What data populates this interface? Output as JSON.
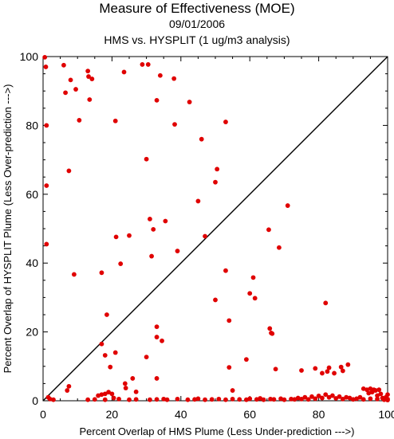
{
  "chart_data": {
    "type": "scatter",
    "title": "Measure of Effectiveness (MOE)",
    "subtitle_date": "09/01/2006",
    "subtitle_analysis": "HMS vs. HYSPLIT  (1 ug/m3 analysis)",
    "xlabel": "Percent Overlap of HMS Plume (Less Under-prediction --->)",
    "ylabel": "Percent Overlap of HYSPLIT Plume (Less Over-prediction --->)",
    "xlim": [
      0,
      100
    ],
    "ylim": [
      0,
      100
    ],
    "xticks": [
      0,
      20,
      40,
      60,
      80,
      100
    ],
    "yticks": [
      0,
      20,
      40,
      60,
      80,
      100
    ],
    "grid": false,
    "reference_line": "y = x diagonal",
    "marker_color": "#e00000",
    "series": [
      {
        "points": [
          [
            0.5,
            99.8
          ],
          [
            0.8,
            97
          ],
          [
            1,
            80
          ],
          [
            1,
            62.5
          ],
          [
            1,
            45.5
          ],
          [
            6,
            97.5
          ],
          [
            6.5,
            89.5
          ],
          [
            8,
            93.2
          ],
          [
            9.5,
            90.5
          ],
          [
            10.5,
            81.5
          ],
          [
            13,
            95.8
          ],
          [
            13.2,
            94.2
          ],
          [
            13.5,
            87.5
          ],
          [
            14.2,
            93.5
          ],
          [
            7.5,
            66.8
          ],
          [
            9,
            36.7
          ],
          [
            17,
            37.2
          ],
          [
            18.5,
            25
          ],
          [
            21,
            81.3
          ],
          [
            21.2,
            47.6
          ],
          [
            22.5,
            39.8
          ],
          [
            23.5,
            95.5
          ],
          [
            25,
            48
          ],
          [
            28.8,
            97.7
          ],
          [
            30.5,
            97.7
          ],
          [
            30,
            70.2
          ],
          [
            31,
            52.8
          ],
          [
            31.5,
            42
          ],
          [
            32,
            49.8
          ],
          [
            33,
            87.3
          ],
          [
            34,
            94.5
          ],
          [
            35.5,
            52.2
          ],
          [
            38,
            93.6
          ],
          [
            38.2,
            80.3
          ],
          [
            39,
            43.5
          ],
          [
            42.5,
            86.8
          ],
          [
            45,
            58
          ],
          [
            46,
            76
          ],
          [
            47,
            47.8
          ],
          [
            50,
            63.5
          ],
          [
            50.5,
            67.3
          ],
          [
            53,
            81
          ],
          [
            53,
            37.8
          ],
          [
            60,
            31.2
          ],
          [
            61,
            35.8
          ],
          [
            61.5,
            29.8
          ],
          [
            65.5,
            49.7
          ],
          [
            68.5,
            44.5
          ],
          [
            71,
            56.7
          ],
          [
            50,
            29.3
          ],
          [
            54,
            23.3
          ],
          [
            33,
            21.5
          ],
          [
            33,
            18.5
          ],
          [
            34.5,
            17.4
          ],
          [
            17,
            16.5
          ],
          [
            18,
            13.2
          ],
          [
            21,
            14
          ],
          [
            19.5,
            9.8
          ],
          [
            30,
            12.7
          ],
          [
            33,
            6.5
          ],
          [
            26,
            6.5
          ],
          [
            23.8,
            5
          ],
          [
            24,
            3.7
          ],
          [
            7.5,
            4.2
          ],
          [
            7,
            3
          ],
          [
            1.5,
            1
          ],
          [
            2,
            0.5
          ],
          [
            3,
            0.3
          ],
          [
            54,
            9.7
          ],
          [
            59,
            12
          ],
          [
            65.8,
            21
          ],
          [
            66.2,
            19.7
          ],
          [
            66.5,
            19.5
          ],
          [
            67.5,
            9.2
          ],
          [
            75,
            8.8
          ],
          [
            82,
            28.4
          ],
          [
            79,
            9.4
          ],
          [
            81,
            8
          ],
          [
            82.5,
            8.5
          ],
          [
            83,
            9.6
          ],
          [
            84.5,
            8
          ],
          [
            86.5,
            9.8
          ],
          [
            87,
            8.7
          ],
          [
            88.5,
            10.5
          ],
          [
            16,
            1.5
          ],
          [
            17,
            1.8
          ],
          [
            18,
            2
          ],
          [
            19,
            2.5
          ],
          [
            20,
            2
          ],
          [
            20.5,
            0.8
          ],
          [
            27,
            2.6
          ],
          [
            55,
            3
          ],
          [
            13,
            0.3
          ],
          [
            15,
            0.4
          ],
          [
            18,
            0.3
          ],
          [
            22,
            0.5
          ],
          [
            25,
            0.3
          ],
          [
            27,
            0.4
          ],
          [
            31,
            0.3
          ],
          [
            33,
            0.4
          ],
          [
            35,
            0.5
          ],
          [
            36,
            0.3
          ],
          [
            39,
            0.5
          ],
          [
            42,
            0.3
          ],
          [
            44,
            0.4
          ],
          [
            45,
            0.6
          ],
          [
            47,
            0.3
          ],
          [
            49,
            0.4
          ],
          [
            51,
            0.5
          ],
          [
            53,
            0.3
          ],
          [
            55,
            0.5
          ],
          [
            57,
            0.4
          ],
          [
            59,
            0.3
          ],
          [
            60,
            0.6
          ],
          [
            62,
            0.4
          ],
          [
            63,
            0.7
          ],
          [
            64,
            0.3
          ],
          [
            66,
            0.5
          ],
          [
            67,
            0.4
          ],
          [
            69,
            0.6
          ],
          [
            70,
            0.3
          ],
          [
            72,
            0.5
          ],
          [
            73,
            0.4
          ],
          [
            74,
            0.8
          ],
          [
            75,
            0.5
          ],
          [
            76,
            1
          ],
          [
            77,
            0.4
          ],
          [
            78,
            1.2
          ],
          [
            79,
            0.6
          ],
          [
            80,
            1.4
          ],
          [
            81,
            0.8
          ],
          [
            82,
            1.8
          ],
          [
            83,
            1
          ],
          [
            84,
            1.5
          ],
          [
            85,
            0.7
          ],
          [
            86,
            1.2
          ],
          [
            87,
            0.5
          ],
          [
            88,
            1
          ],
          [
            89,
            0.8
          ],
          [
            90,
            0.4
          ],
          [
            91,
            0.6
          ],
          [
            92,
            1
          ],
          [
            93,
            3.5
          ],
          [
            94,
            3.2
          ],
          [
            94.5,
            2.2
          ],
          [
            95,
            3.5
          ],
          [
            95.5,
            2.5
          ],
          [
            96,
            3.2
          ],
          [
            96.5,
            3
          ],
          [
            97,
            1.5
          ],
          [
            97.5,
            3.2
          ],
          [
            98,
            2
          ],
          [
            98.5,
            0.8
          ],
          [
            99,
            0.4
          ],
          [
            99.5,
            1
          ],
          [
            100,
            0.5
          ],
          [
            100,
            1.8
          ],
          [
            93,
            0.4
          ],
          [
            95,
            0.6
          ],
          [
            97,
            0.5
          ],
          [
            99,
            0.3
          ],
          [
            100,
            0.2
          ]
        ]
      }
    ]
  }
}
